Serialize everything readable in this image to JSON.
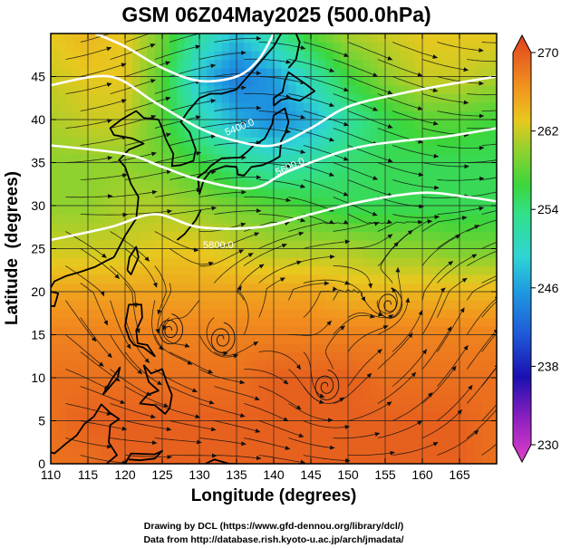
{
  "title": "GSM 06Z04May2025 (500.0hPa)",
  "xlabel": "Longitude (degrees)",
  "ylabel": "Latitude  (degrees)",
  "x_ticks": [
    "110",
    "115",
    "120",
    "125",
    "130",
    "135",
    "140",
    "145",
    "150",
    "155",
    "160",
    "165"
  ],
  "y_ticks": [
    "0",
    "5",
    "10",
    "15",
    "20",
    "25",
    "30",
    "35",
    "40",
    "45"
  ],
  "colorbar_ticks": [
    "270",
    "262",
    "254",
    "246",
    "238",
    "230"
  ],
  "contour_labels": [
    "5400.0",
    "5600.0",
    "5800.0"
  ],
  "credits": [
    "Drawing by DCL (https://www.gfd-dennou.org/library/dcl/)",
    "Data from http://database.rish.kyoto-u.ac.jp/arch/jmadata/"
  ],
  "chart_data": {
    "type": "map",
    "variable": "temperature",
    "level": "500.0hPa",
    "lon_range": [
      110,
      170
    ],
    "lat_range": [
      0,
      50
    ],
    "color_range": [
      230,
      270
    ],
    "colormap": [
      "#e040c8",
      "#1a10b0",
      "#1f8ad8",
      "#2fd4d4",
      "#32e08a",
      "#3cd63c",
      "#8fd12e",
      "#e8c81e",
      "#f2921e",
      "#e0401e"
    ],
    "height_contours": [
      {
        "label": "5400.0",
        "points": [
          [
            116,
            50
          ],
          [
            120,
            48.5
          ],
          [
            125,
            46
          ],
          [
            130,
            44.5
          ],
          [
            135,
            45
          ],
          [
            138,
            47
          ],
          [
            140,
            50
          ]
        ]
      },
      {
        "label": "5600.0",
        "points": [
          [
            110,
            44
          ],
          [
            118,
            45
          ],
          [
            124,
            42
          ],
          [
            130,
            39
          ],
          [
            135,
            37.5
          ],
          [
            140,
            37
          ],
          [
            145,
            39
          ],
          [
            150,
            41.5
          ],
          [
            157,
            43
          ],
          [
            163,
            44
          ],
          [
            170,
            45
          ]
        ]
      },
      {
        "label": "5700.0",
        "points": [
          [
            110,
            37
          ],
          [
            120,
            36
          ],
          [
            125,
            34.5
          ],
          [
            130,
            33
          ],
          [
            137,
            32
          ],
          [
            142,
            34
          ],
          [
            150,
            36.5
          ],
          [
            157,
            37.5
          ],
          [
            163,
            38
          ],
          [
            170,
            39
          ]
        ]
      },
      {
        "label": "5800.0",
        "points": [
          [
            110,
            26
          ],
          [
            118,
            27.5
          ],
          [
            124,
            29
          ],
          [
            130,
            27.5
          ],
          [
            138,
            27.5
          ],
          [
            145,
            29
          ],
          [
            152,
            30.5
          ],
          [
            160,
            31.5
          ],
          [
            166,
            31
          ],
          [
            170,
            30.5
          ]
        ]
      }
    ],
    "background_field": [
      [
        262,
        263,
        262,
        258,
        252,
        248,
        252,
        257,
        260,
        261,
        262,
        262,
        262
      ],
      [
        261,
        262,
        262,
        257,
        248,
        244,
        246,
        251,
        256,
        259,
        261,
        261,
        260
      ],
      [
        260,
        261,
        261,
        257,
        251,
        247,
        245,
        247,
        252,
        255,
        257,
        257,
        256
      ],
      [
        259,
        259,
        259,
        258,
        256,
        253,
        251,
        252,
        254,
        255,
        255,
        255,
        255
      ],
      [
        259,
        259,
        260,
        260,
        259,
        258,
        257,
        256,
        255,
        255,
        255,
        255,
        255
      ],
      [
        261,
        261,
        261,
        262,
        262,
        261,
        260,
        260,
        260,
        259,
        259,
        258,
        258
      ],
      [
        264,
        264,
        264,
        264,
        264,
        264,
        264,
        264,
        263,
        263,
        263,
        263,
        263
      ],
      [
        266,
        266,
        266,
        266,
        266,
        266,
        266,
        266,
        266,
        266,
        266,
        266,
        266
      ],
      [
        267,
        267,
        267,
        267,
        267,
        267,
        268,
        268,
        268,
        267,
        267,
        267,
        267
      ],
      [
        267,
        268,
        268,
        268,
        268,
        268,
        268,
        268,
        268,
        268,
        268,
        268,
        267
      ],
      [
        267,
        267,
        268,
        268,
        268,
        268,
        268,
        268,
        268,
        268,
        268,
        268,
        267
      ]
    ],
    "vortices": [
      [
        126,
        15.5
      ],
      [
        133,
        14.5
      ],
      [
        155.5,
        18.5
      ],
      [
        147,
        9
      ]
    ],
    "coastlines": [
      [
        [
          118.5,
          24
        ],
        [
          120,
          26.5
        ],
        [
          121.5,
          28.5
        ],
        [
          121.8,
          31
        ],
        [
          120.8,
          32.5
        ],
        [
          120,
          34.5
        ],
        [
          119.2,
          35.3
        ],
        [
          120.5,
          36.5
        ],
        [
          122.5,
          37.2
        ],
        [
          121,
          37.8
        ],
        [
          118.5,
          38.2
        ],
        [
          118,
          39
        ],
        [
          119.5,
          40
        ],
        [
          121.5,
          41
        ],
        [
          122.5,
          40.2
        ],
        [
          124.5,
          40
        ]
      ],
      [
        [
          124.5,
          40
        ],
        [
          125,
          39
        ],
        [
          125.5,
          37.7
        ],
        [
          126.5,
          36
        ],
        [
          126.3,
          34.6
        ],
        [
          127.5,
          34.7
        ],
        [
          129.2,
          35.2
        ],
        [
          129.5,
          36.5
        ],
        [
          128.7,
          38.5
        ],
        [
          127.5,
          39.7
        ],
        [
          128.5,
          41
        ],
        [
          130,
          42.5
        ],
        [
          131.5,
          43
        ],
        [
          133,
          43
        ],
        [
          135,
          43.5
        ],
        [
          137,
          45.5
        ],
        [
          138.5,
          47
        ],
        [
          140,
          48.5
        ],
        [
          141,
          50
        ]
      ],
      [
        [
          130,
          31.3
        ],
        [
          130.6,
          33
        ],
        [
          131.5,
          34
        ],
        [
          132.5,
          34.3
        ],
        [
          133.5,
          34.6
        ],
        [
          135,
          34.5
        ],
        [
          135.2,
          33.6
        ],
        [
          136,
          33.5
        ],
        [
          137,
          34.5
        ],
        [
          138.5,
          34.7
        ],
        [
          139.8,
          35.2
        ],
        [
          140.8,
          35.7
        ],
        [
          141,
          37.5
        ],
        [
          141.6,
          38.5
        ],
        [
          142,
          39.7
        ],
        [
          141.5,
          41.3
        ],
        [
          140,
          40.5
        ],
        [
          139.8,
          39.5
        ],
        [
          138.8,
          37.8
        ],
        [
          137.2,
          36.9
        ],
        [
          136.5,
          36.3
        ],
        [
          135.5,
          35.6
        ],
        [
          133,
          35.5
        ],
        [
          131.5,
          34.6
        ],
        [
          130.9,
          34
        ],
        [
          129.8,
          33.3
        ],
        [
          130,
          31.3
        ]
      ],
      [
        [
          140,
          41.6
        ],
        [
          141,
          42.3
        ],
        [
          142,
          42.5
        ],
        [
          143.5,
          42.2
        ],
        [
          145.5,
          43.3
        ],
        [
          144.5,
          44
        ],
        [
          142,
          45.5
        ],
        [
          141.5,
          44.5
        ],
        [
          141.2,
          43.2
        ],
        [
          140,
          42.5
        ],
        [
          140,
          41.6
        ]
      ],
      [
        [
          142,
          46
        ],
        [
          143,
          47
        ],
        [
          143.5,
          49
        ],
        [
          143,
          50
        ]
      ],
      [
        [
          120.3,
          22.5
        ],
        [
          120.6,
          24
        ],
        [
          121.5,
          25.2
        ],
        [
          121.8,
          24
        ],
        [
          120.8,
          22
        ],
        [
          120.3,
          22.5
        ]
      ],
      [
        [
          120.5,
          18.5
        ],
        [
          122.2,
          18.5
        ],
        [
          122.3,
          17
        ],
        [
          121.5,
          15.5
        ],
        [
          121.7,
          14
        ],
        [
          123,
          13.8
        ],
        [
          124,
          12.5
        ],
        [
          122.5,
          13.5
        ],
        [
          121.2,
          13.8
        ],
        [
          120.6,
          14.5
        ],
        [
          120,
          16
        ],
        [
          120.5,
          18.5
        ]
      ],
      [
        [
          122.5,
          11.5
        ],
        [
          123.5,
          10.5
        ],
        [
          125,
          11
        ],
        [
          125.6,
          9.5
        ],
        [
          126.3,
          8
        ],
        [
          126,
          6.5
        ],
        [
          125.4,
          5.8
        ],
        [
          124,
          6.8
        ],
        [
          122,
          7
        ],
        [
          123,
          8
        ],
        [
          124.5,
          8.5
        ],
        [
          123.2,
          9.5
        ],
        [
          122.5,
          11.5
        ]
      ],
      [
        [
          117,
          8
        ],
        [
          119,
          10
        ],
        [
          119.3,
          11.2
        ],
        [
          118.2,
          9.8
        ],
        [
          117,
          8
        ]
      ],
      [
        [
          109.5,
          1.5
        ],
        [
          110.5,
          1.2
        ],
        [
          112,
          2.3
        ],
        [
          113.5,
          3.3
        ],
        [
          114.5,
          4.6
        ],
        [
          115.8,
          5.5
        ],
        [
          116.8,
          6.9
        ],
        [
          118,
          5.9
        ],
        [
          119.2,
          5.2
        ],
        [
          118,
          4.5
        ],
        [
          117.8,
          2.5
        ],
        [
          118.9,
          1
        ],
        [
          117.5,
          0
        ]
      ],
      [
        [
          120,
          0
        ],
        [
          120.8,
          1.2
        ],
        [
          124,
          1.1
        ],
        [
          125,
          1.5
        ],
        [
          124,
          0.6
        ],
        [
          122,
          0.4
        ],
        [
          120.5,
          0.5
        ]
      ],
      [
        [
          130.8,
          0
        ],
        [
          132,
          0.5
        ],
        [
          134,
          0
        ],
        [
          135,
          0
        ]
      ],
      [
        [
          109,
          11.5
        ],
        [
          109.3,
          13.5
        ],
        [
          108.8,
          15.5
        ],
        [
          108,
          16.5
        ],
        [
          106.5,
          18
        ],
        [
          106,
          19
        ],
        [
          107.5,
          21.5
        ],
        [
          109,
          21.5
        ],
        [
          110,
          20.5
        ],
        [
          110.5,
          21.2
        ],
        [
          112,
          21.8
        ],
        [
          114,
          22.3
        ],
        [
          116,
          22.9
        ],
        [
          117.5,
          23.6
        ],
        [
          118.5,
          24
        ]
      ],
      [
        [
          108.7,
          18.5
        ],
        [
          110.5,
          18.3
        ],
        [
          111,
          19.8
        ],
        [
          110,
          20
        ],
        [
          108.7,
          18.5
        ]
      ],
      [
        [
          127,
          26
        ],
        [
          128,
          26.7
        ],
        [
          129.5,
          28.3
        ],
        [
          130.2,
          29.5
        ]
      ]
    ]
  }
}
